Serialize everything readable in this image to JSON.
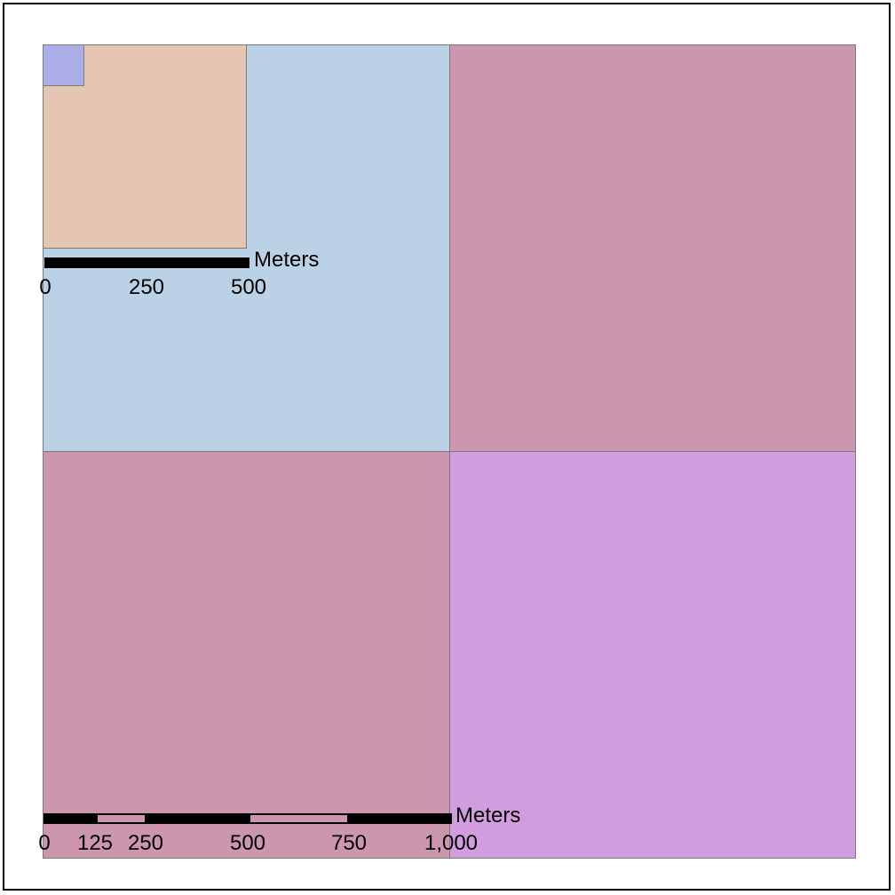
{
  "map": {
    "cells": [
      {
        "name": "cell-top-left",
        "color": "#BAD1E6"
      },
      {
        "name": "cell-top-right",
        "color": "#CC96AE"
      },
      {
        "name": "cell-bottom-left",
        "color": "#CC96AE"
      },
      {
        "name": "cell-bottom-right",
        "color": "#D29DDE"
      },
      {
        "name": "cell-inset",
        "color": "#E4C6B2"
      },
      {
        "name": "cell-corner",
        "color": "#ABADE6"
      }
    ]
  },
  "scalebar_small": {
    "unit": "Meters",
    "ticks": [
      "0",
      "250",
      "500"
    ]
  },
  "scalebar_large": {
    "unit": "Meters",
    "ticks": [
      "0",
      "125",
      "250",
      "500",
      "750",
      "1,000"
    ],
    "segment_fill": "#CC96AE"
  }
}
